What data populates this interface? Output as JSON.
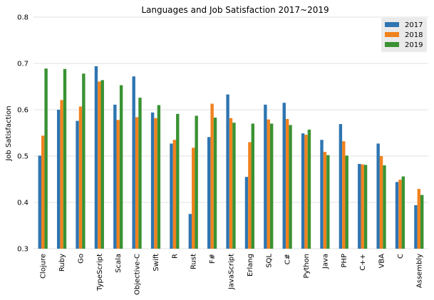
{
  "chart_data": {
    "type": "bar",
    "title": "Languages and Job Satisfaction 2017~2019",
    "xlabel": "",
    "ylabel": "Job Satisfaction",
    "ylim": [
      0.3,
      0.8
    ],
    "yticks": [
      "0.3",
      "0.4",
      "0.5",
      "0.6",
      "0.7",
      "0.8"
    ],
    "grid": true,
    "legend_position": "top-right",
    "categories": [
      "Clojure",
      "Ruby",
      "Go",
      "TypeScript",
      "Scala",
      "Objective-C",
      "Swift",
      "R",
      "Rust",
      "F#",
      "JavaScript",
      "Erlang",
      "SQL",
      "C#",
      "Python",
      "Java",
      "PHP",
      "C++",
      "VBA",
      "C",
      "Assembly"
    ],
    "series": [
      {
        "name": "2017",
        "color": "#2e75b1",
        "values": [
          0.501,
          0.6,
          0.576,
          0.694,
          0.611,
          0.672,
          0.594,
          0.527,
          0.375,
          0.541,
          0.633,
          0.455,
          0.611,
          0.615,
          0.549,
          0.535,
          0.569,
          0.483,
          0.527,
          0.444,
          0.394
        ]
      },
      {
        "name": "2018",
        "color": "#f0821e",
        "values": [
          0.544,
          0.621,
          0.607,
          0.661,
          0.578,
          0.584,
          0.582,
          0.535,
          0.518,
          0.613,
          0.582,
          0.53,
          0.579,
          0.58,
          0.546,
          0.509,
          0.532,
          0.482,
          0.5,
          0.449,
          0.429
        ]
      },
      {
        "name": "2019",
        "color": "#3a9233",
        "values": [
          0.689,
          0.688,
          0.678,
          0.664,
          0.653,
          0.626,
          0.61,
          0.591,
          0.587,
          0.583,
          0.572,
          0.57,
          0.57,
          0.567,
          0.557,
          0.502,
          0.501,
          0.481,
          0.48,
          0.456,
          0.416
        ]
      }
    ]
  }
}
